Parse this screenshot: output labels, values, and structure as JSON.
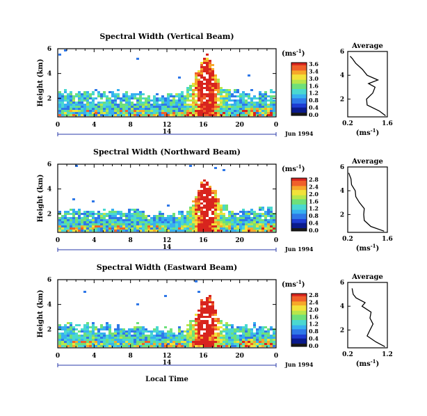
{
  "x_axis_ticks": [
    "0",
    "4",
    "8",
    "12",
    "16",
    "20",
    "0"
  ],
  "y_axis_ticks": [
    "2",
    "4",
    "6"
  ],
  "day_marker": "14",
  "date_label": "Jun 1994",
  "x_axis_label": "Local Time",
  "units_label": "(ms",
  "units_sup": "-1",
  "units_close": ")",
  "average_title": "Average",
  "height_label": "Height (km)",
  "colors": {
    "scale": [
      "#000000",
      "#0a1a8c",
      "#1e3cd2",
      "#2f78e8",
      "#37b0f0",
      "#4ad8d0",
      "#6ee07a",
      "#b8e64a",
      "#f2e23a",
      "#f6a82a",
      "#f0602a",
      "#d8241e"
    ],
    "bar_no_echo": "#1a1a1a"
  },
  "panels": [
    {
      "title": "Spectral Width (Vertical Beam)",
      "colorbar_ticks": [
        "3.6",
        "3.4",
        "3.0",
        "1.6",
        "1.2",
        "0.8",
        "0.4",
        "0.0"
      ],
      "avg_x_ticks": [
        "0.2",
        "1.6"
      ],
      "avg_xlabel": "(ms",
      "avg_xlabel_sup": "-1",
      "avg_xlabel_close": ")"
    },
    {
      "title": "Spectral Width (Northward Beam)",
      "colorbar_ticks": [
        "2.8",
        "2.4",
        "2.0",
        "1.6",
        "1.2",
        "0.8",
        "0.4",
        "0.0"
      ],
      "avg_x_ticks": [
        "0.2",
        "1.6"
      ],
      "avg_xlabel": "(ms",
      "avg_xlabel_sup": "-1",
      "avg_xlabel_close": ")"
    },
    {
      "title": "Spectral Width (Eastward Beam)",
      "colorbar_ticks": [
        "2.8",
        "2.4",
        "2.0",
        "1.6",
        "1.2",
        "0.8",
        "0.4",
        "0.0"
      ],
      "avg_x_ticks": [
        "0.2",
        "1.2"
      ],
      "avg_xlabel": "(ms",
      "avg_xlabel_sup": "-1",
      "avg_xlabel_close": ")"
    }
  ],
  "chart_data": [
    {
      "type": "heatmap",
      "title": "Spectral Width (Vertical Beam)",
      "xlabel": "",
      "ylabel": "Height (km)",
      "xlim": [
        0,
        24
      ],
      "ylim": [
        0.5,
        6
      ],
      "x_ticks": [
        0,
        4,
        8,
        12,
        16,
        20,
        24
      ],
      "y_ticks": [
        2,
        4,
        6
      ],
      "colorbar_range": [
        0.0,
        3.6
      ],
      "average_profile": {
        "title": "Average",
        "xlabel": "(ms-1)",
        "xlim": [
          0.2,
          1.6
        ],
        "height": [
          0.6,
          1.0,
          1.5,
          2.0,
          2.5,
          3.0,
          3.3,
          3.6,
          4.0,
          4.5,
          5.0,
          5.4,
          5.6
        ],
        "value": [
          1.55,
          1.3,
          0.9,
          0.85,
          1.1,
          1.15,
          0.95,
          1.25,
          0.9,
          0.7,
          0.5,
          0.35,
          0.3
        ]
      }
    },
    {
      "type": "heatmap",
      "title": "Spectral Width (Northward Beam)",
      "xlabel": "",
      "ylabel": "Height (km)",
      "xlim": [
        0,
        24
      ],
      "ylim": [
        0.5,
        6
      ],
      "x_ticks": [
        0,
        4,
        8,
        12,
        16,
        20,
        24
      ],
      "y_ticks": [
        2,
        4,
        6
      ],
      "colorbar_range": [
        0.0,
        2.8
      ],
      "average_profile": {
        "title": "Average",
        "xlabel": "(ms-1)",
        "xlim": [
          0.2,
          1.6
        ],
        "height": [
          0.6,
          1.0,
          1.5,
          2.0,
          2.5,
          3.0,
          3.5,
          4.0,
          4.5,
          5.0,
          5.5
        ],
        "value": [
          1.5,
          1.0,
          0.8,
          0.75,
          0.8,
          0.6,
          0.5,
          0.45,
          0.35,
          0.3,
          0.25
        ]
      }
    },
    {
      "type": "heatmap",
      "title": "Spectral Width (Eastward Beam)",
      "xlabel": "Local Time",
      "ylabel": "Height (km)",
      "xlim": [
        0,
        24
      ],
      "ylim": [
        0.5,
        6
      ],
      "x_ticks": [
        0,
        4,
        8,
        12,
        16,
        20,
        24
      ],
      "y_ticks": [
        2,
        4,
        6
      ],
      "colorbar_range": [
        0.0,
        2.8
      ],
      "average_profile": {
        "title": "Average",
        "xlabel": "(ms-1)",
        "xlim": [
          0.2,
          1.2
        ],
        "height": [
          0.6,
          1.0,
          1.5,
          2.0,
          2.5,
          3.0,
          3.5,
          4.0,
          4.3,
          4.7,
          5.0,
          5.5
        ],
        "value": [
          1.15,
          0.9,
          0.7,
          0.75,
          0.85,
          0.75,
          0.8,
          0.55,
          0.65,
          0.4,
          0.35,
          0.3
        ]
      }
    }
  ]
}
